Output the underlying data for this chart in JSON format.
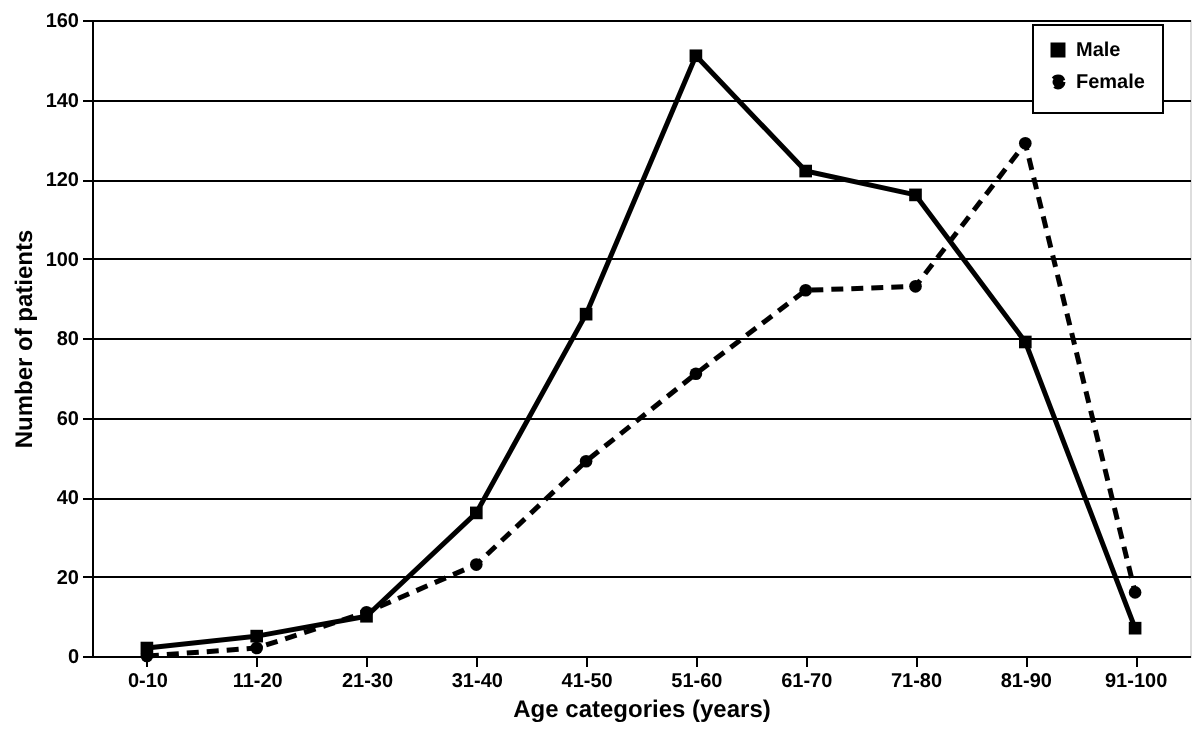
{
  "chart_data": {
    "type": "line",
    "xlabel": "Age categories (years)",
    "ylabel": "Number of patients",
    "categories": [
      "0-10",
      "11-20",
      "21-30",
      "31-40",
      "41-50",
      "51-60",
      "61-70",
      "71-80",
      "81-90",
      "91-100"
    ],
    "series": [
      {
        "name": "Male",
        "color": "#000000",
        "marker": "square",
        "line_style": "solid",
        "values": [
          2,
          5,
          10,
          36,
          86,
          151,
          122,
          116,
          79,
          7
        ]
      },
      {
        "name": "Female",
        "color": "#000000",
        "marker": "circle",
        "line_style": "dashed",
        "values": [
          0,
          2,
          11,
          23,
          49,
          71,
          92,
          93,
          129,
          16
        ]
      }
    ],
    "ylim": [
      0,
      160
    ],
    "yticks": [
      0,
      20,
      40,
      60,
      80,
      100,
      120,
      140,
      160
    ],
    "grid": "y",
    "legend": "top right"
  }
}
